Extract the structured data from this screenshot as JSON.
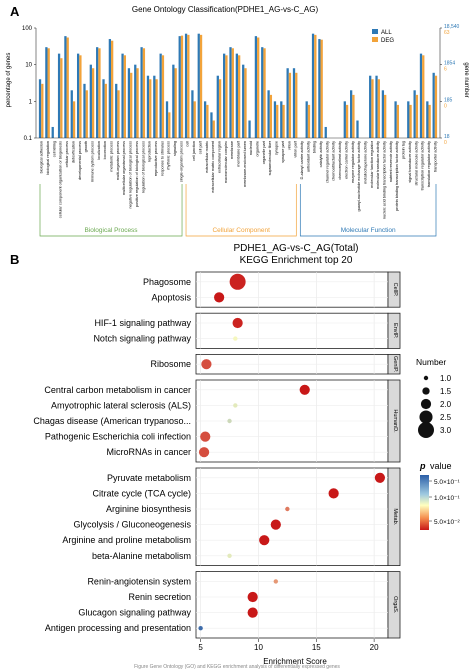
{
  "panelA": {
    "label": "A",
    "chart_data": {
      "type": "bar",
      "title": "Gene Ontology Classification(PDHE1_AG-vs-C_AG)",
      "ylabel": "percentage of genes",
      "y2label": "gene number",
      "yscale": "log",
      "ylim": [
        0.1,
        100
      ],
      "ytick_labels": [
        "100",
        "10",
        "1",
        "0.1"
      ],
      "y2_tick_groups": [
        [
          "18,540",
          "63"
        ],
        [
          "1854",
          "6"
        ],
        [
          "185",
          "0"
        ],
        [
          "18",
          "0"
        ]
      ],
      "legend": [
        {
          "name": "ALL",
          "color": "#2e79b5"
        },
        {
          "name": "DEG",
          "color": "#f2a33a"
        }
      ],
      "series_names": [
        "ALL",
        "DEG"
      ],
      "groups": [
        {
          "name": "Biological Process",
          "color": "#6aa84f",
          "categories": [
            "biological adhesion",
            "biological regulation",
            "cell killing",
            "cellular component organization or biogenesis",
            "cellular process",
            "detoxification",
            "developmental process",
            "growth",
            "immune system process",
            "localization",
            "locomotion",
            "metabolic process",
            "multi-organism process",
            "multicellular organismal process",
            "negative regulation of biological process",
            "positive regulation of biological process",
            "regulation of biological process",
            "reproduction",
            "reproductive process",
            "response to stimulus",
            "rhythmic process",
            "signaling",
            "single-organism process"
          ],
          "all": [
            4,
            30,
            0.2,
            20,
            60,
            2,
            20,
            3,
            10,
            30,
            4,
            50,
            3,
            20,
            8,
            10,
            30,
            5,
            5,
            20,
            1,
            10,
            60
          ],
          "deg": [
            3,
            28,
            0,
            15,
            55,
            1,
            18,
            2,
            8,
            28,
            3,
            45,
            2,
            18,
            6,
            8,
            28,
            4,
            4,
            18,
            0.5,
            8,
            62
          ]
        },
        {
          "name": "Cellular Component",
          "color": "#f2a33a",
          "categories": [
            "cell",
            "cell junction",
            "cell part",
            "extracellular matrix",
            "extracellular matrix component",
            "extracellular region",
            "macromolecular complex",
            "membrane",
            "membrane part",
            "membrane-enclosed lumen",
            "nucleoid",
            "organelle",
            "organelle part",
            "supramolecular fiber",
            "synapse",
            "synapse part",
            "virion",
            "virion part"
          ],
          "all": [
            70,
            2,
            70,
            1,
            0.5,
            5,
            20,
            30,
            20,
            10,
            0.3,
            60,
            30,
            2,
            1,
            1,
            8,
            8
          ],
          "deg": [
            65,
            1,
            65,
            0.8,
            0.3,
            4,
            18,
            28,
            18,
            8,
            0,
            55,
            28,
            1.5,
            0.8,
            0.8,
            6,
            6
          ]
        },
        {
          "name": "Molecular Function",
          "color": "#2e79b5",
          "categories": [
            "D-alanyl carrier activity",
            "antioxidant activity",
            "binding",
            "catalytic activity",
            "channel regulator activity",
            "chemoattractant activity",
            "chemorepellent activity",
            "electron carrier activity",
            "enzyme regulator activity",
            "guanyl-nucleotide exchange factor activity",
            "metallochaperone activity",
            "molecular function regulator",
            "molecular transducer activity",
            "nucleic acid binding transcription factor activity",
            "nutrient reservoir activity",
            "protein binding transcription factor activity",
            "protein tag",
            "signal transducer activity",
            "structural molecule activity",
            "transcription regulator activity",
            "translation regulator activity",
            "transporter activity"
          ],
          "all": [
            0.1,
            1,
            70,
            50,
            0.2,
            0.1,
            0.1,
            1,
            2,
            0.3,
            0.1,
            5,
            5,
            2,
            0.1,
            1,
            0.1,
            1,
            2,
            20,
            1,
            6
          ],
          "deg": [
            0,
            0.8,
            65,
            48,
            0,
            0,
            0,
            0.8,
            1.5,
            0,
            0,
            4,
            4,
            1.5,
            0,
            0.8,
            0,
            0.8,
            1.5,
            18,
            0.8,
            5
          ]
        }
      ]
    }
  },
  "panelB": {
    "label": "B",
    "chart_data": {
      "type": "scatter",
      "title": "PDHE1_AG-vs-C_AG(Total)",
      "subtitle": "KEGG Enrichment top 20",
      "xlabel": "Enrichment Score",
      "xlim": [
        4.6,
        21.2
      ],
      "xticks": [
        5,
        10,
        15,
        20
      ],
      "grid": true,
      "facets": [
        {
          "label": "CellP.",
          "terms": [
            {
              "name": "Phagosome",
              "x": 8.2,
              "count": 3,
              "p": 0.045
            },
            {
              "name": "Apoptosis",
              "x": 6.6,
              "count": 2,
              "p": 0.05
            }
          ]
        },
        {
          "label": "EnvIP.",
          "terms": [
            {
              "name": "HIF-1 signaling pathway",
              "x": 8.2,
              "count": 2,
              "p": 0.045
            },
            {
              "name": "Notch signaling pathway",
              "x": 8.0,
              "count": 1,
              "p": 0.005
            }
          ]
        },
        {
          "label": "GenIP.",
          "terms": [
            {
              "name": "Ribosome",
              "x": 5.5,
              "count": 2,
              "p": 0.03
            }
          ]
        },
        {
          "label": "HumanD.",
          "terms": [
            {
              "name": "Central carbon metabolism in cancer",
              "x": 14.0,
              "count": 2,
              "p": 0.05
            },
            {
              "name": "Amyotrophic lateral sclerosis (ALS)",
              "x": 8.0,
              "count": 1,
              "p": 0.004
            },
            {
              "name": "Chagas disease (American trypanoso...",
              "x": 7.5,
              "count": 1,
              "p": 0.003
            },
            {
              "name": "Pathogenic Escherichia coli infection",
              "x": 5.4,
              "count": 2,
              "p": 0.03
            },
            {
              "name": "MicroRNAs in cancer",
              "x": 5.3,
              "count": 2,
              "p": 0.03
            }
          ]
        },
        {
          "label": "Metab.",
          "terms": [
            {
              "name": "Pyruvate metabolism",
              "x": 20.5,
              "count": 2,
              "p": 0.05
            },
            {
              "name": "Citrate cycle (TCA cycle)",
              "x": 16.5,
              "count": 2,
              "p": 0.05
            },
            {
              "name": "Arginine biosynthesis",
              "x": 12.5,
              "count": 1,
              "p": 0.02
            },
            {
              "name": "Glycolysis / Gluconeogenesis",
              "x": 11.5,
              "count": 2,
              "p": 0.05
            },
            {
              "name": "Arginine and proline metabolism",
              "x": 10.5,
              "count": 2,
              "p": 0.05
            },
            {
              "name": "beta-Alanine metabolism",
              "x": 7.5,
              "count": 1,
              "p": 0.004
            }
          ]
        },
        {
          "label": "OrgaS.",
          "terms": [
            {
              "name": "Renin-angiotensin system",
              "x": 11.5,
              "count": 1,
              "p": 0.015
            },
            {
              "name": "Renin secretion",
              "x": 9.5,
              "count": 2,
              "p": 0.05
            },
            {
              "name": "Glucagon signaling pathway",
              "x": 9.5,
              "count": 2,
              "p": 0.05
            },
            {
              "name": "Antigen processing and presentation",
              "x": 5.0,
              "count": 1,
              "p": 0.0005
            }
          ]
        }
      ],
      "size_legend": {
        "title": "Number",
        "values": [
          "1.0",
          "1.5",
          "2.0",
          "2.5",
          "3.0"
        ]
      },
      "color_legend": {
        "title_symbol": "p",
        "title_text": " value",
        "tick_labels": [
          "5.0×10⁻¹",
          "1.0×10⁻¹",
          "5.0×10⁻²"
        ],
        "colors": [
          "#2c5fa8",
          "#ffffbf",
          "#c81818"
        ]
      }
    }
  },
  "caption": "Figure  Gene Ontology (GO) and KEGG enrichment analysis of differentially expressed genes"
}
